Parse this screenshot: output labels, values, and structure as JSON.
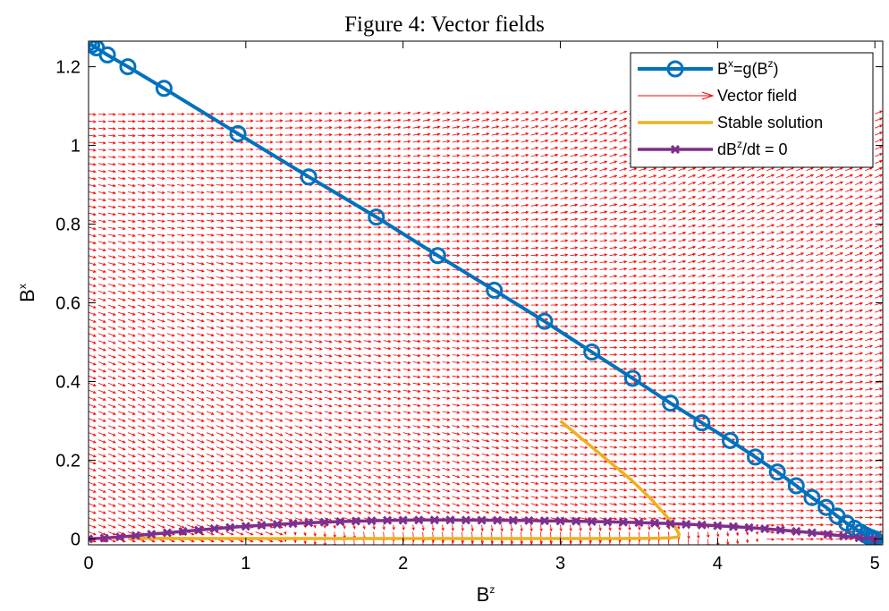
{
  "figure": {
    "title": "Figure 4: Vector fields"
  },
  "chart_data": {
    "type": "line",
    "title": "Figure 4: Vector fields",
    "xlabel": {
      "base": "B",
      "sup": "z"
    },
    "ylabel": {
      "base": "B",
      "sup": "x"
    },
    "xlim": [
      0,
      5.05
    ],
    "ylim": [
      -0.015,
      1.265
    ],
    "xticks": [
      0,
      1,
      2,
      3,
      4,
      5
    ],
    "yticks": [
      0,
      0.2,
      0.4,
      0.6,
      0.8,
      1,
      1.2
    ],
    "xtick_labels": [
      "0",
      "1",
      "2",
      "3",
      "4",
      "5"
    ],
    "ytick_labels": [
      "0",
      "0.2",
      "0.4",
      "0.6",
      "0.8",
      "1",
      "1.2"
    ],
    "grid": false,
    "legend_position": "top-right",
    "colors": {
      "g_curve": "#0072BD",
      "vector_field": "#FF0000",
      "stable": "#EDB120",
      "nullcline": "#7E2F8E"
    },
    "legend": [
      {
        "key": "g_curve",
        "label_parts": [
          [
            "B",
            ""
          ],
          [
            "x",
            "sup"
          ],
          [
            "=g(B",
            ""
          ],
          [
            "z",
            "sup"
          ],
          [
            ")",
            ""
          ]
        ],
        "marker": "circle"
      },
      {
        "key": "vector_field",
        "label_parts": [
          [
            "Vector field",
            ""
          ]
        ],
        "marker": "arrow"
      },
      {
        "key": "stable",
        "label_parts": [
          [
            "Stable solution",
            ""
          ]
        ],
        "marker": "none"
      },
      {
        "key": "nullcline",
        "label_parts": [
          [
            "dB",
            ""
          ],
          [
            "z",
            "sup"
          ],
          [
            "/dt = 0",
            ""
          ]
        ],
        "marker": "x"
      }
    ],
    "series": [
      {
        "key": "g_curve",
        "x": [
          0.0,
          0.02,
          0.05,
          0.12,
          0.25,
          0.48,
          0.95,
          1.4,
          1.83,
          2.22,
          2.58,
          2.9,
          3.2,
          3.46,
          3.7,
          3.9,
          4.08,
          4.24,
          4.38,
          4.5,
          4.6,
          4.69,
          4.76,
          4.82,
          4.87,
          4.91,
          4.94,
          4.96,
          4.98,
          4.99,
          5.0
        ],
        "y": [
          1.26,
          1.255,
          1.248,
          1.23,
          1.2,
          1.145,
          1.03,
          0.92,
          0.818,
          0.72,
          0.632,
          0.553,
          0.475,
          0.408,
          0.345,
          0.295,
          0.25,
          0.208,
          0.17,
          0.135,
          0.105,
          0.08,
          0.058,
          0.04,
          0.027,
          0.017,
          0.01,
          0.006,
          0.003,
          0.001,
          0.0
        ]
      },
      {
        "key": "stable",
        "x": [
          3.0,
          3.15,
          3.3,
          3.45,
          3.58,
          3.67,
          3.73,
          3.755,
          3.75,
          3.7,
          3.6,
          3.4,
          3.0,
          2.4,
          1.8,
          1.2,
          0.7,
          0.35,
          0.25
        ],
        "y": [
          0.3,
          0.25,
          0.2,
          0.15,
          0.1,
          0.06,
          0.03,
          0.012,
          0.005,
          0.0025,
          0.0015,
          0.001,
          0.001,
          0.001,
          0.001,
          0.001,
          0.001,
          0.0015,
          0.002
        ]
      },
      {
        "key": "nullcline",
        "x": [
          0.0,
          0.1,
          0.2,
          0.3,
          0.4,
          0.5,
          0.6,
          0.7,
          0.8,
          0.9,
          1.0,
          1.1,
          1.2,
          1.3,
          1.4,
          1.5,
          1.6,
          1.7,
          1.8,
          1.9,
          2.0,
          2.1,
          2.2,
          2.3,
          2.4,
          2.5,
          2.6,
          2.7,
          2.8,
          2.9,
          3.0,
          3.1,
          3.2,
          3.3,
          3.4,
          3.5,
          3.6,
          3.7,
          3.8,
          3.9,
          4.0,
          4.1,
          4.2,
          4.3,
          4.4,
          4.5,
          4.6,
          4.7,
          4.8,
          4.9,
          5.0
        ],
        "y": [
          0.0,
          0.002,
          0.005,
          0.0085,
          0.012,
          0.0155,
          0.019,
          0.0225,
          0.026,
          0.029,
          0.032,
          0.0345,
          0.037,
          0.039,
          0.041,
          0.0425,
          0.044,
          0.045,
          0.046,
          0.047,
          0.0475,
          0.048,
          0.048,
          0.048,
          0.0478,
          0.0475,
          0.0472,
          0.047,
          0.0465,
          0.046,
          0.0455,
          0.045,
          0.0442,
          0.0435,
          0.0425,
          0.0415,
          0.0402,
          0.0388,
          0.0372,
          0.0354,
          0.0334,
          0.0311,
          0.0286,
          0.0258,
          0.0227,
          0.0193,
          0.0156,
          0.0116,
          0.0073,
          0.0028,
          0.0
        ]
      }
    ],
    "vector_field": {
      "key": "vector_field",
      "x_start": 0,
      "x_end": 5,
      "x_count": 81,
      "y_start": 0,
      "y_end": 1.08,
      "y_count": 61
    }
  }
}
